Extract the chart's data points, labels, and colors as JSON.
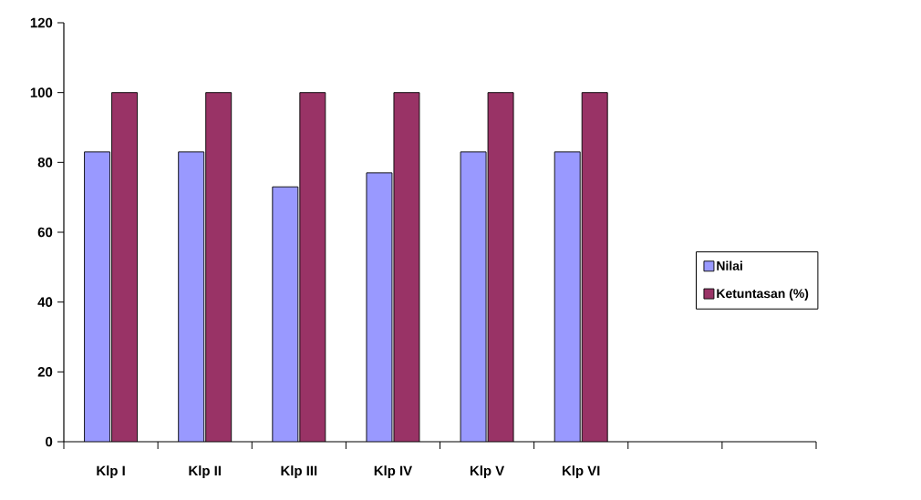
{
  "chart_data": {
    "type": "bar",
    "categories": [
      "Klp I",
      "Klp II",
      "Klp III",
      "Klp IV",
      "Klp V",
      "Klp VI",
      null,
      null
    ],
    "series": [
      {
        "name": "Nilai",
        "color": "#9999ff",
        "values": [
          83,
          83,
          73,
          77,
          83,
          83,
          null,
          null
        ]
      },
      {
        "name": "Ketuntasan (%)",
        "color": "#993366",
        "values": [
          100,
          100,
          100,
          100,
          100,
          100,
          null,
          null
        ]
      }
    ],
    "ylim": [
      0,
      120
    ],
    "yticks": [
      0,
      20,
      40,
      60,
      80,
      100,
      120
    ],
    "legend": "right",
    "grid": false
  }
}
